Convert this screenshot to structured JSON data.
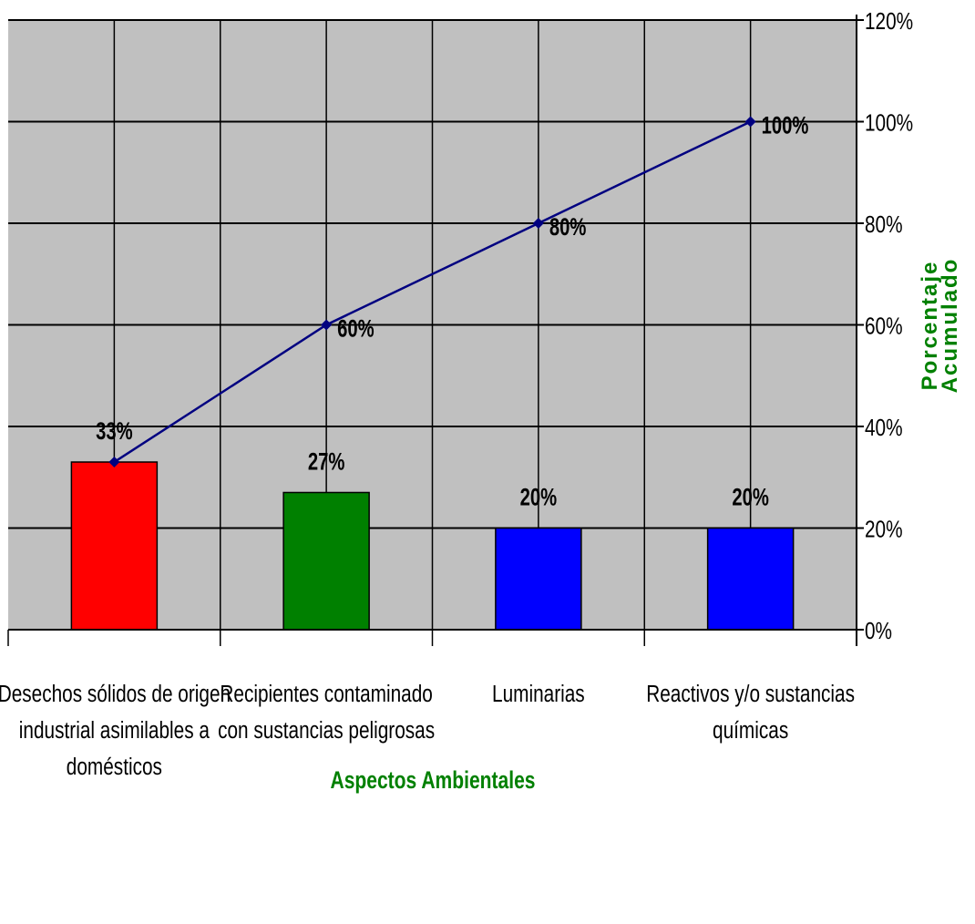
{
  "colors": {
    "plot_bg": "#c0c0c0",
    "grid": "#000000",
    "line": "#000080",
    "axis_title": "#008000"
  },
  "chart_data": {
    "type": "bar",
    "categories": [
      [
        "Desechos sólidos de origen",
        "industrial asimilables a",
        "domésticos"
      ],
      [
        "Recipientes contaminado",
        "con sustancias peligrosas"
      ],
      [
        "Luminarias"
      ],
      [
        "Reactivos y/o sustancias",
        "químicas"
      ]
    ],
    "series": [
      {
        "kind": "bar",
        "values": [
          33,
          27,
          20,
          20
        ],
        "labels": [
          "33%",
          "27%",
          "20%",
          "20%"
        ],
        "colors": [
          "#ff0000",
          "#008000",
          "#0000ff",
          "#0000ff"
        ]
      },
      {
        "kind": "line",
        "values": [
          33,
          60,
          80,
          100
        ],
        "labels": [
          "",
          "60%",
          "80%",
          "100%"
        ],
        "color": "#000080"
      }
    ],
    "xlabel": "Aspectos Ambientales",
    "y2label_lines": [
      "Porcentaje",
      "Acumulado"
    ],
    "ylim": [
      0,
      120
    ],
    "yticks": [
      "0%",
      "20%",
      "40%",
      "60%",
      "80%",
      "100%",
      "120%"
    ],
    "grid": true,
    "legend": "none"
  }
}
